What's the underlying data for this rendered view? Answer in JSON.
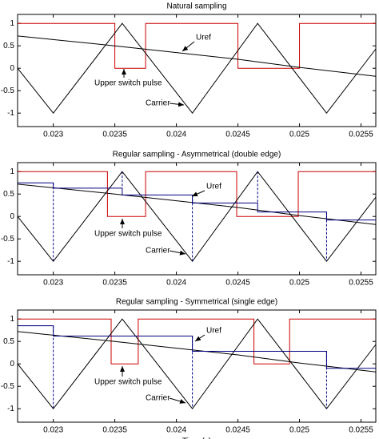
{
  "chart_data": [
    {
      "type": "line",
      "title": "Natural sampling",
      "xlim": [
        0.02271,
        0.02562
      ],
      "xticks": [
        0.023,
        0.0235,
        0.024,
        0.0245,
        0.025,
        0.0255
      ],
      "ylim": [
        -1.3,
        1.2
      ],
      "yticks": [
        -1,
        -0.5,
        0,
        0.5,
        1
      ],
      "annotations": [
        "Uref",
        "Upper switch pulse",
        "Carrier"
      ],
      "series": [
        {
          "color": "#cc0000",
          "x": [
            0.02271,
            0.0235,
            0.0235,
            0.02375,
            0.02375,
            0.0245,
            0.0245,
            0.025,
            0.025,
            0.02562
          ],
          "values": [
            1,
            1,
            0,
            0,
            1,
            1,
            0,
            0,
            1,
            1
          ]
        },
        {
          "color": "#000000",
          "x": [
            0.02271,
            0.023,
            0.02356,
            0.02413,
            0.02466,
            0.02522,
            0.02562
          ],
          "values": [
            0,
            -1,
            1,
            -1,
            1,
            -1,
            0.43
          ]
        },
        {
          "color": "#000000",
          "x": [
            0.02271,
            0.0235,
            0.024,
            0.0245,
            0.025,
            0.02562
          ],
          "values": [
            0.72,
            0.5,
            0.35,
            0.2,
            0.02,
            -0.18
          ]
        }
      ]
    },
    {
      "type": "line",
      "title": "Regular sampling - Asymmetrical (double edge)",
      "xlim": [
        0.02271,
        0.02562
      ],
      "xticks": [
        0.023,
        0.0235,
        0.024,
        0.0245,
        0.025,
        0.0255
      ],
      "ylim": [
        -1.3,
        1.2
      ],
      "yticks": [
        -1,
        -0.5,
        0,
        0.5,
        1
      ],
      "annotations": [
        "Uref",
        "Upper switch pulse",
        "Carrier"
      ],
      "series": [
        {
          "color": "#cc0000",
          "x": [
            0.02271,
            0.02344,
            0.02344,
            0.02375,
            0.02375,
            0.02449,
            0.02449,
            0.02499,
            0.02499,
            0.02562
          ],
          "values": [
            1,
            1,
            0,
            0,
            1,
            1,
            0,
            0,
            1,
            1
          ]
        },
        {
          "color": "#000000",
          "x": [
            0.02271,
            0.023,
            0.02356,
            0.02413,
            0.02466,
            0.02522,
            0.02562
          ],
          "values": [
            0,
            -1,
            1,
            -1,
            1,
            -1,
            0.43
          ]
        },
        {
          "color": "#000000",
          "x": [
            0.02271,
            0.0235,
            0.024,
            0.0245,
            0.025,
            0.02562
          ],
          "values": [
            0.72,
            0.5,
            0.35,
            0.2,
            0.02,
            -0.18
          ]
        },
        {
          "color": "#000080",
          "x": [
            0.02271,
            0.023,
            0.023,
            0.02356,
            0.02356,
            0.02413,
            0.02413,
            0.02466,
            0.02466,
            0.02522,
            0.02522,
            0.02562
          ],
          "values": [
            0.75,
            0.75,
            0.63,
            0.63,
            0.48,
            0.48,
            0.3,
            0.3,
            0.1,
            0.1,
            -0.08,
            -0.08
          ]
        },
        {
          "color": "#000080",
          "dash": true,
          "x": [
            0.023,
            0.023,
            null,
            0.02356,
            0.02356,
            null,
            0.02413,
            0.02413,
            null,
            0.02466,
            0.02466,
            null,
            0.02522,
            0.02522
          ],
          "values": [
            0.75,
            -1,
            null,
            1,
            0.63,
            null,
            0.48,
            -1,
            null,
            1,
            0.3,
            null,
            0.1,
            -1
          ]
        }
      ]
    },
    {
      "type": "line",
      "title": "Regular sampling - Symmetrical (single edge)",
      "xlabel": "Time (s)",
      "xlim": [
        0.02271,
        0.02562
      ],
      "xticks": [
        0.023,
        0.0235,
        0.024,
        0.0245,
        0.025,
        0.0255
      ],
      "ylim": [
        -1.3,
        1.2
      ],
      "yticks": [
        -1,
        -0.5,
        0,
        0.5,
        1
      ],
      "annotations": [
        "Uref",
        "Upper switch pulse",
        "Carrier"
      ],
      "series": [
        {
          "color": "#cc0000",
          "x": [
            0.02271,
            0.02347,
            0.02347,
            0.02369,
            0.02369,
            0.02463,
            0.02463,
            0.02492,
            0.02492,
            0.02562
          ],
          "values": [
            1,
            1,
            0,
            0,
            1,
            1,
            0,
            0,
            1,
            1
          ]
        },
        {
          "color": "#000000",
          "x": [
            0.02271,
            0.023,
            0.02356,
            0.02413,
            0.02466,
            0.02522,
            0.02562
          ],
          "values": [
            0,
            -1,
            1,
            -1,
            1,
            -1,
            0.43
          ]
        },
        {
          "color": "#000000",
          "x": [
            0.02271,
            0.0235,
            0.024,
            0.0245,
            0.025,
            0.02562
          ],
          "values": [
            0.72,
            0.5,
            0.35,
            0.2,
            0.02,
            -0.18
          ]
        },
        {
          "color": "#000080",
          "x": [
            0.02271,
            0.023,
            0.023,
            0.02413,
            0.02413,
            0.02522,
            0.02522,
            0.02562
          ],
          "values": [
            0.85,
            0.85,
            0.62,
            0.62,
            0.28,
            0.28,
            -0.1,
            -0.1
          ]
        },
        {
          "color": "#000080",
          "dash": true,
          "x": [
            0.023,
            0.023,
            null,
            0.02413,
            0.02413,
            null,
            0.02522,
            0.02522
          ],
          "values": [
            0.85,
            -1,
            null,
            0.62,
            -1,
            null,
            0.28,
            -1
          ]
        }
      ]
    }
  ]
}
